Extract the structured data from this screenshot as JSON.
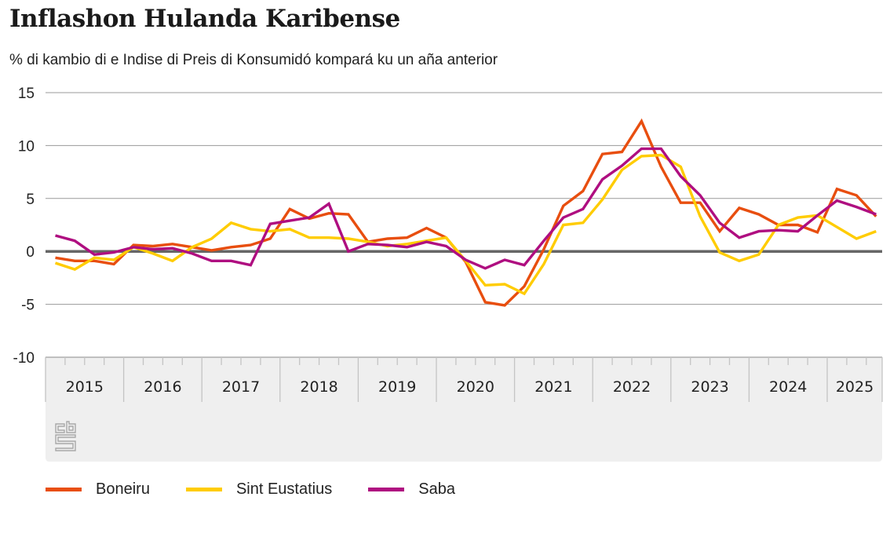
{
  "header": {
    "title": "Inflashon Hulanda Karibense",
    "subtitle": "% di kambio di e Indise di Preis di Konsumidó kompará ku un aña anterior"
  },
  "logo": {
    "icon": "cbs-logo-icon",
    "text": "cbs"
  },
  "colors": {
    "Boneiru": "#E84E0F",
    "Sint Eustatius": "#FFCC00",
    "Saba": "#AF0E80",
    "grid": "#9a9a9a",
    "zero": "#666666",
    "panel": "#EFEFEF"
  },
  "chart_data": {
    "type": "line",
    "title": "Inflashon Hulanda Karibense",
    "subtitle": "% di kambio di e Indise di Preis di Konsumidó kompará ku un aña anterior",
    "xlabel": "",
    "ylabel": "",
    "ylim": [
      -10,
      15
    ],
    "yticks": [
      "15",
      "10",
      "5",
      "0",
      "-5",
      "-10"
    ],
    "ytick_values": [
      15,
      10,
      5,
      0,
      -5,
      -10
    ],
    "x_frequency": "quarterly",
    "x_start": "2015 Q1",
    "x_end": "2025 Q3",
    "year_labels": [
      "2015",
      "2016",
      "2017",
      "2018",
      "2019",
      "2020",
      "2021",
      "2022",
      "2023",
      "2024",
      "2025"
    ],
    "grid": true,
    "legend_position": "bottom",
    "series": [
      {
        "name": "Boneiru",
        "values": [
          -0.6,
          -0.9,
          -0.9,
          -1.2,
          0.6,
          0.5,
          0.7,
          0.4,
          0.1,
          0.4,
          0.6,
          1.2,
          4.0,
          3.1,
          3.6,
          3.5,
          0.9,
          1.2,
          1.3,
          2.2,
          1.3,
          -1.0,
          -4.8,
          -5.1,
          -3.3,
          0.2,
          4.3,
          5.7,
          9.2,
          9.4,
          12.3,
          8.0,
          4.6,
          4.6,
          1.9,
          4.1,
          3.5,
          2.5,
          2.5,
          1.8,
          5.9,
          5.3,
          3.3
        ]
      },
      {
        "name": "Sint Eustatius",
        "values": [
          -1.1,
          -1.7,
          -0.6,
          -0.8,
          0.4,
          -0.2,
          -0.9,
          0.4,
          1.2,
          2.7,
          2.1,
          1.9,
          2.1,
          1.3,
          1.3,
          1.2,
          0.9,
          0.5,
          0.7,
          1.0,
          1.3,
          -0.9,
          -3.2,
          -3.1,
          -4.0,
          -1.2,
          2.5,
          2.7,
          4.9,
          7.7,
          9.0,
          9.1,
          8.0,
          3.3,
          -0.1,
          -0.9,
          -0.3,
          2.5,
          3.2,
          3.4,
          2.3,
          1.2,
          1.9
        ]
      },
      {
        "name": "Saba",
        "values": [
          1.5,
          1.0,
          -0.3,
          -0.1,
          0.4,
          0.2,
          0.3,
          -0.2,
          -0.9,
          -0.9,
          -1.3,
          2.6,
          2.9,
          3.2,
          4.5,
          0.0,
          0.7,
          0.6,
          0.4,
          0.9,
          0.5,
          -0.8,
          -1.6,
          -0.8,
          -1.3,
          1.0,
          3.2,
          4.0,
          6.8,
          8.1,
          9.7,
          9.7,
          7.1,
          5.3,
          2.7,
          1.3,
          1.9,
          2.0,
          1.9,
          3.4,
          4.8,
          4.2,
          3.5
        ]
      }
    ]
  }
}
